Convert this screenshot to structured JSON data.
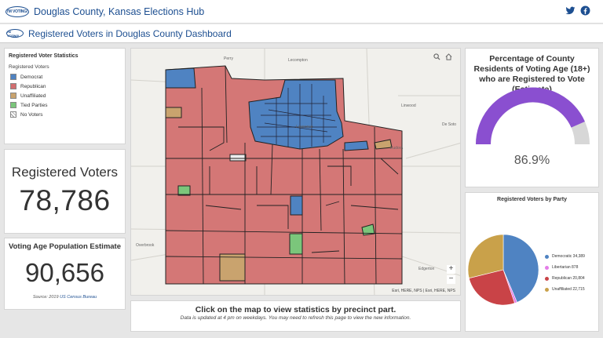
{
  "header": {
    "logo_text": "I'M VOTING!",
    "title": "Douglas County, Kansas Elections Hub",
    "twitter_icon": "twitter-icon",
    "facebook_icon": "facebook-icon"
  },
  "subheader": {
    "title": "Registered Voters in Douglas County Dashboard"
  },
  "legend": {
    "title": "Registered Voter Statistics",
    "subtitle": "Registered Voters",
    "items": [
      {
        "label": "Democrat",
        "color": "#4f83c2"
      },
      {
        "label": "Republican",
        "color": "#d36e70"
      },
      {
        "label": "Unaffiliated",
        "color": "#c9a36e"
      },
      {
        "label": "Tied Parties",
        "color": "#7bc67b"
      },
      {
        "label": "No Voters",
        "color": "hatch"
      }
    ]
  },
  "registered": {
    "label": "Registered Voters",
    "value": "78,786"
  },
  "population": {
    "label": "Voting Age Population Estimate",
    "value": "90,656",
    "source_prefix": "Source: 2019",
    "source_link": "US Census Bureau"
  },
  "map": {
    "place_labels": [
      "Perry",
      "Lecompton",
      "Linwood",
      "De Soto",
      "Eudora",
      "Overbrook",
      "Edgerton",
      "Lawrence"
    ],
    "attribution": "Esri, HERE, NPS | Esri, HERE, NPS",
    "attribution_left": "Esri, HERE, NPS",
    "search_icon": "search-icon",
    "home_icon": "home-icon",
    "zoom_in": "+",
    "zoom_out": "−"
  },
  "percentage": {
    "title": "Percentage of County Residents of Voting Age (18+) who are Registered to Vote (Estimate)",
    "value": "86.9%",
    "fraction": 0.869,
    "fill_color": "#8a4fd0",
    "track_color": "#d7d7d7"
  },
  "party_chart": {
    "title": "Registered Voters by Party",
    "items": [
      {
        "label": "Democratic",
        "value": 34389,
        "display": "Democratic  34,389",
        "color": "#4f83c2"
      },
      {
        "label": "Libertarian",
        "value": 878,
        "display": "Libertarian  878",
        "color": "#e47de8"
      },
      {
        "label": "Republican",
        "value": 20804,
        "display": "Republican  20,804",
        "color": "#c94347"
      },
      {
        "label": "Unaffiliated",
        "value": 22715,
        "display": "Unaffiliated  22,715",
        "color": "#c9a14a"
      }
    ]
  },
  "chart_data": {
    "type": "pie",
    "title": "Registered Voters by Party",
    "categories": [
      "Democratic",
      "Libertarian",
      "Republican",
      "Unaffiliated"
    ],
    "values": [
      34389,
      878,
      20804,
      22715
    ],
    "legend": "right"
  },
  "footer": {
    "title": "Click on the map to view statistics by precinct part.",
    "subtitle": "Data is updated at 4 pm on weekdays. You may need to refresh this page to view the new information."
  }
}
